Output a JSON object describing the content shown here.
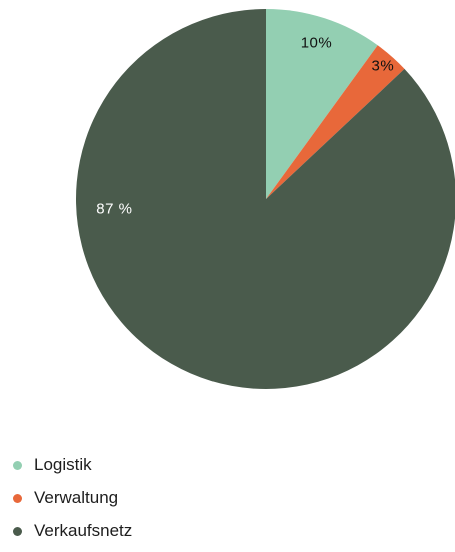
{
  "chart_data": {
    "type": "pie",
    "categories": [
      "Logistik",
      "Verwaltung",
      "Verkaufsnetz"
    ],
    "values": [
      10,
      3,
      87
    ],
    "labels": [
      "10%",
      "3%",
      "87 %"
    ],
    "colors": [
      "#93cfb2",
      "#e8683a",
      "#4a5b4c"
    ],
    "start_angle": "12 o'clock",
    "direction": "clockwise",
    "legend_position": "bottom-left"
  }
}
